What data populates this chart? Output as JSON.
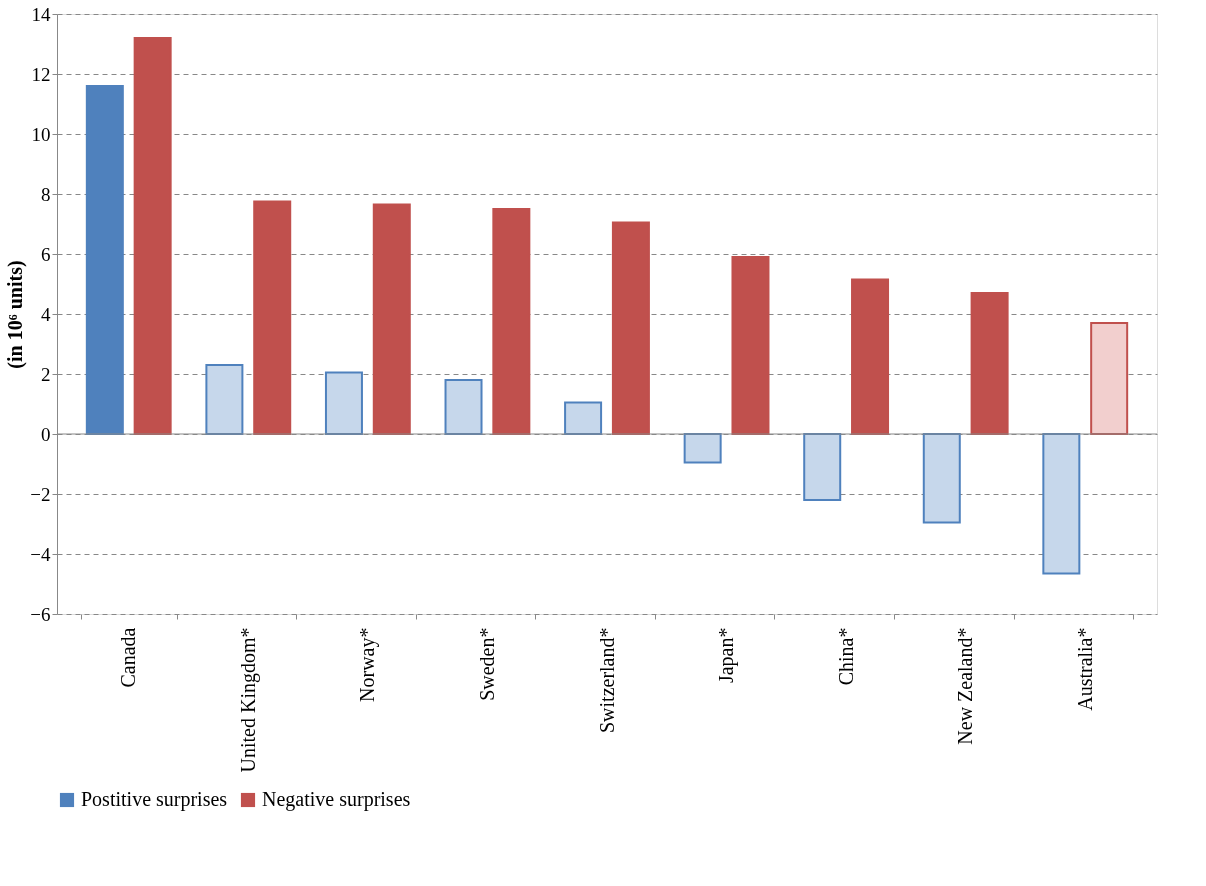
{
  "chart_data": {
    "type": "bar",
    "ylabel": "(in 10⁶ units)",
    "categories": [
      "Canada",
      "United Kingdom*",
      "Norway*",
      "Sweden*",
      "Switzerland*",
      "Japan*",
      "China*",
      "New Zealand*",
      "Australia*"
    ],
    "series": [
      {
        "name": "Postitive surprises",
        "color": "#4f81bd",
        "colors": [
          "#4f81bd",
          "#c6d7eb",
          "#c6d7eb",
          "#c6d7eb",
          "#c6d7eb",
          "#c6d7eb",
          "#c6d7eb",
          "#c6d7eb",
          "#c6d7eb"
        ],
        "values": [
          11.6,
          2.3,
          2.05,
          1.8,
          1.05,
          -0.95,
          -2.2,
          -2.95,
          -4.65
        ]
      },
      {
        "name": "Negative surprises",
        "color": "#c0504d",
        "colors": [
          "#c0504d",
          "#c0504d",
          "#c0504d",
          "#c0504d",
          "#c0504d",
          "#c0504d",
          "#c0504d",
          "#c0504d",
          "#f2cfce"
        ],
        "values": [
          13.2,
          7.75,
          7.65,
          7.5,
          7.05,
          5.9,
          5.15,
          4.7,
          3.7
        ]
      }
    ],
    "ylim": [
      -6,
      14
    ],
    "yticks": [
      -6,
      -4,
      -2,
      0,
      2,
      4,
      6,
      8,
      10,
      12,
      14
    ],
    "grid": "y",
    "legend": "bottom"
  }
}
